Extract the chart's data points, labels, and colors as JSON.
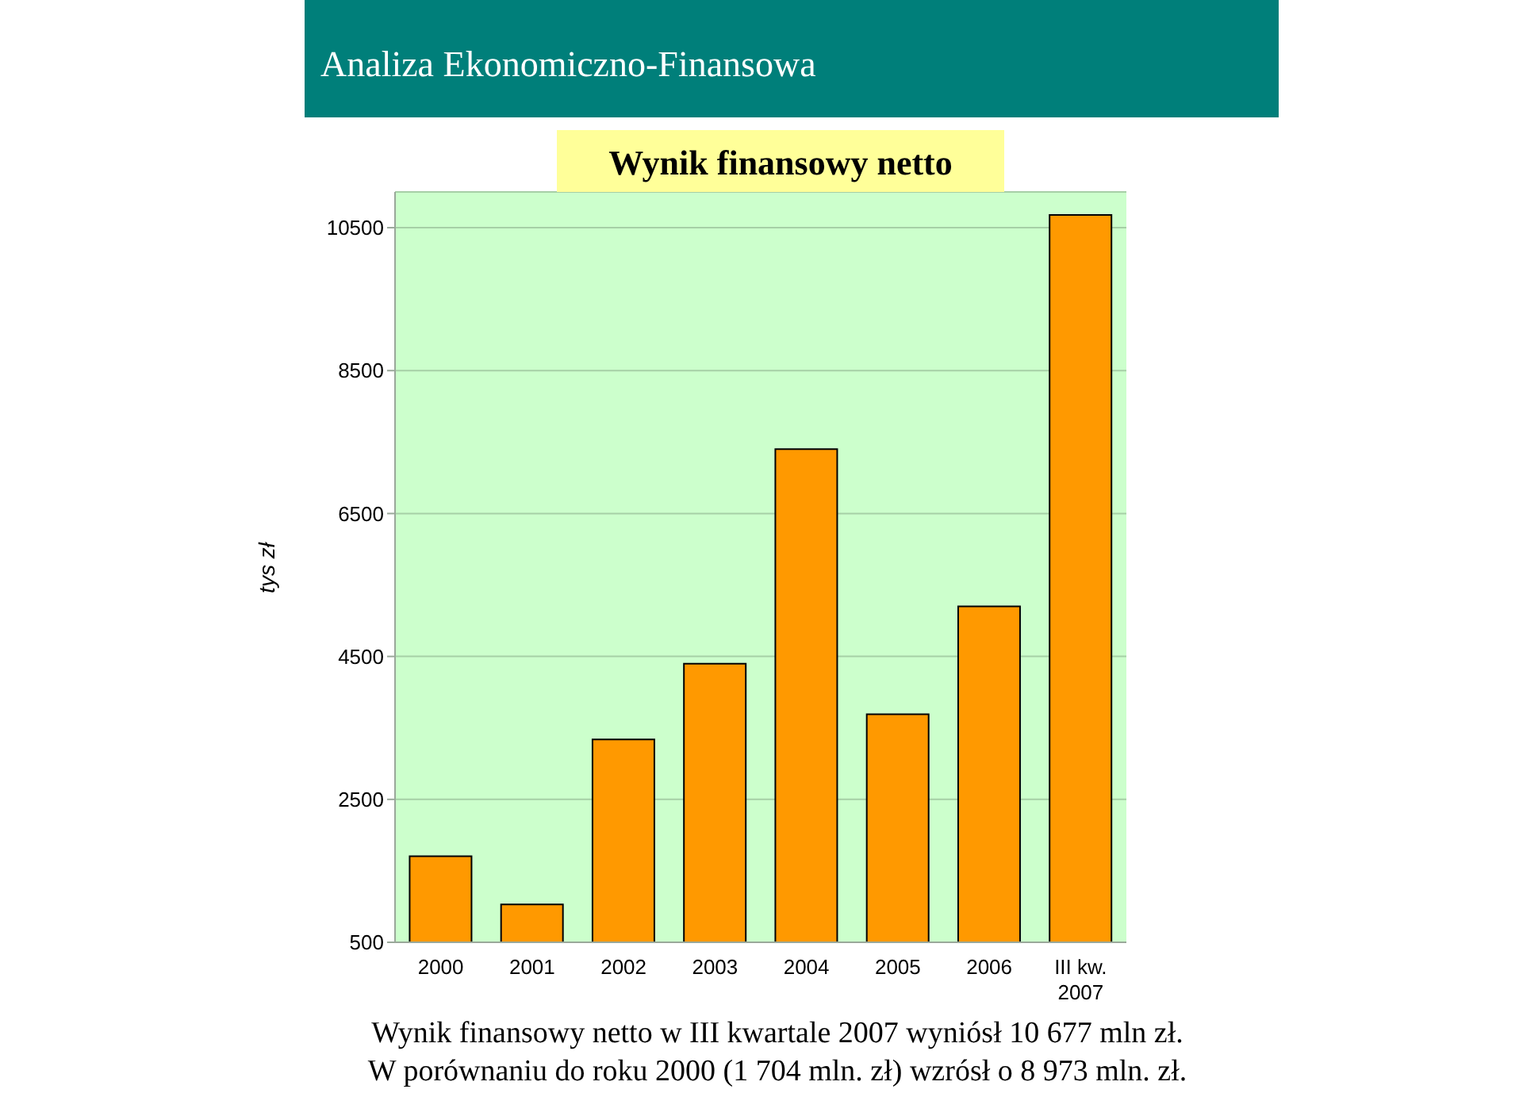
{
  "chart_data": {
    "type": "bar",
    "title": "Wynik finansowy netto",
    "subtitle": "Analiza Ekonomiczno-Finansowa",
    "ylabel": "tys zł",
    "categories": [
      "2000",
      "2001",
      "2002",
      "2003",
      "2004",
      "2005",
      "2006",
      "III kw. 2007"
    ],
    "values": [
      1704,
      1030,
      3340,
      4400,
      7400,
      3690,
      5200,
      10677
    ],
    "color": "#ff9900",
    "ylim": [
      500,
      11000
    ],
    "yticks": [
      500,
      2500,
      4500,
      6500,
      8500,
      10500
    ],
    "grid": "y",
    "annotations": [
      "Wynik finansowy netto w III kwartale 2007 wyniósł 10 677 mln zł.",
      "W porównaniu do roku 2000 (1 704 mln. zł) wzrósł o 8 973 mln. zł."
    ]
  }
}
